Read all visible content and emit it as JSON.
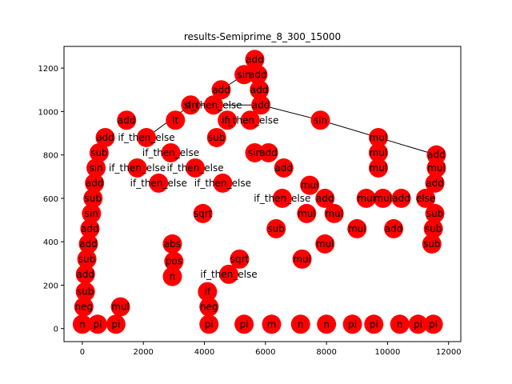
{
  "chart_data": {
    "type": "scatter",
    "title": "results-Semiprime_8_300_15000",
    "xlabel": "",
    "ylabel": "",
    "xlim": [
      -600,
      12400
    ],
    "ylim": [
      -60,
      1300
    ],
    "x_ticks": [
      0,
      2000,
      4000,
      6000,
      8000,
      10000,
      12000
    ],
    "y_ticks": [
      0,
      200,
      400,
      600,
      800,
      1000,
      1200
    ],
    "x_tick_labels": [
      "0",
      "2000",
      "4000",
      "6000",
      "8000",
      "10000",
      "12000"
    ],
    "y_tick_labels": [
      "0",
      "200",
      "400",
      "600",
      "800",
      "1000",
      "1200"
    ],
    "grid": false,
    "legend": "none",
    "node_color": "#ff0000",
    "edge_color": "#000000",
    "nodes": [
      {
        "id": "root",
        "label": "add",
        "x": 5650,
        "y": 1240
      },
      {
        "id": "r1",
        "label": "sin",
        "x": 5300,
        "y": 1170
      },
      {
        "id": "r2",
        "label": "add",
        "x": 5750,
        "y": 1170
      },
      {
        "id": "r3",
        "label": "add",
        "x": 4550,
        "y": 1100
      },
      {
        "id": "r4",
        "label": "add",
        "x": 5800,
        "y": 1100
      },
      {
        "id": "r5",
        "label": "sin",
        "x": 3550,
        "y": 1030
      },
      {
        "id": "r6",
        "label": "if_then_else",
        "x": 4300,
        "y": 1030
      },
      {
        "id": "r7",
        "label": "add",
        "x": 5850,
        "y": 1030
      },
      {
        "id": "r8",
        "label": "lt",
        "x": 3050,
        "y": 960
      },
      {
        "id": "r9",
        "label": "add",
        "x": 1450,
        "y": 960
      },
      {
        "id": "r10",
        "label": "n",
        "x": 4750,
        "y": 960
      },
      {
        "id": "r11",
        "label": "if_then_else",
        "x": 5500,
        "y": 960
      },
      {
        "id": "r12",
        "label": "sin",
        "x": 7800,
        "y": 960
      },
      {
        "id": "r13",
        "label": "if_then_else",
        "x": 2100,
        "y": 880
      },
      {
        "id": "r14",
        "label": "add",
        "x": 750,
        "y": 880
      },
      {
        "id": "r15",
        "label": "sub",
        "x": 4400,
        "y": 880
      },
      {
        "id": "r16",
        "label": "mul",
        "x": 9700,
        "y": 880
      },
      {
        "id": "r17",
        "label": "add",
        "x": 11600,
        "y": 800
      },
      {
        "id": "r18",
        "label": "mul",
        "x": 9700,
        "y": 810
      },
      {
        "id": "r19",
        "label": "sub",
        "x": 550,
        "y": 810
      },
      {
        "id": "r20",
        "label": "if_then_else",
        "x": 2900,
        "y": 810
      },
      {
        "id": "r21",
        "label": "sin",
        "x": 5650,
        "y": 810
      },
      {
        "id": "r22",
        "label": "add",
        "x": 6100,
        "y": 810
      },
      {
        "id": "r23",
        "label": "sin",
        "x": 450,
        "y": 740
      },
      {
        "id": "r24",
        "label": "mul",
        "x": 9700,
        "y": 740
      },
      {
        "id": "r25",
        "label": "mul",
        "x": 11600,
        "y": 740
      },
      {
        "id": "r26",
        "label": "add",
        "x": 6600,
        "y": 740
      },
      {
        "id": "r27",
        "label": "if_then_else",
        "x": 1800,
        "y": 740
      },
      {
        "id": "r28",
        "label": "if_then_else",
        "x": 3700,
        "y": 740
      },
      {
        "id": "r29",
        "label": "mul",
        "x": 7450,
        "y": 660
      },
      {
        "id": "r30",
        "label": "add",
        "x": 400,
        "y": 670
      },
      {
        "id": "r31",
        "label": "if_then_else",
        "x": 2500,
        "y": 670
      },
      {
        "id": "r32",
        "label": "if_then_else",
        "x": 4600,
        "y": 670
      },
      {
        "id": "r33",
        "label": "add",
        "x": 11550,
        "y": 670
      },
      {
        "id": "r34",
        "label": "sub",
        "x": 350,
        "y": 600
      },
      {
        "id": "r35",
        "label": "add",
        "x": 7950,
        "y": 600
      },
      {
        "id": "r36",
        "label": "mul",
        "x": 9300,
        "y": 600
      },
      {
        "id": "r37",
        "label": "mul",
        "x": 9850,
        "y": 600
      },
      {
        "id": "r38",
        "label": "add",
        "x": 10450,
        "y": 600
      },
      {
        "id": "r39",
        "label": "else",
        "x": 11250,
        "y": 600
      },
      {
        "id": "r40",
        "label": "if_then_else",
        "x": 6550,
        "y": 600
      },
      {
        "id": "r41",
        "label": "sin",
        "x": 300,
        "y": 530
      },
      {
        "id": "r42",
        "label": "mul",
        "x": 7350,
        "y": 530
      },
      {
        "id": "r43",
        "label": "mul",
        "x": 8250,
        "y": 530
      },
      {
        "id": "r44",
        "label": "sub",
        "x": 11550,
        "y": 530
      },
      {
        "id": "r45",
        "label": "sqrt",
        "x": 3950,
        "y": 530
      },
      {
        "id": "r46",
        "label": "add",
        "x": 250,
        "y": 460
      },
      {
        "id": "r47",
        "label": "mul",
        "x": 9000,
        "y": 460
      },
      {
        "id": "r48",
        "label": "add",
        "x": 10200,
        "y": 460
      },
      {
        "id": "r49",
        "label": "sub",
        "x": 11500,
        "y": 460
      },
      {
        "id": "r50",
        "label": "sub",
        "x": 6350,
        "y": 460
      },
      {
        "id": "r51",
        "label": "add",
        "x": 200,
        "y": 390
      },
      {
        "id": "r52",
        "label": "mul",
        "x": 7950,
        "y": 390
      },
      {
        "id": "r53",
        "label": "sub",
        "x": 11450,
        "y": 390
      },
      {
        "id": "r54",
        "label": "abs",
        "x": 2950,
        "y": 390
      },
      {
        "id": "r55",
        "label": "sub",
        "x": 150,
        "y": 320
      },
      {
        "id": "r56",
        "label": "mul",
        "x": 7200,
        "y": 320
      },
      {
        "id": "r57",
        "label": "pos",
        "x": 3000,
        "y": 310
      },
      {
        "id": "r58",
        "label": "sqrt",
        "x": 5150,
        "y": 320
      },
      {
        "id": "r59",
        "label": "add",
        "x": 100,
        "y": 250
      },
      {
        "id": "r60",
        "label": "n",
        "x": 2950,
        "y": 240
      },
      {
        "id": "r61",
        "label": "if_then_else",
        "x": 4800,
        "y": 250
      },
      {
        "id": "r62",
        "label": "sub",
        "x": 100,
        "y": 170
      },
      {
        "id": "r63",
        "label": "if",
        "x": 4100,
        "y": 170
      },
      {
        "id": "r64",
        "label": "neg",
        "x": 50,
        "y": 100
      },
      {
        "id": "r65",
        "label": "mul",
        "x": 1250,
        "y": 100
      },
      {
        "id": "r66",
        "label": "neg",
        "x": 4150,
        "y": 100
      },
      {
        "id": "r67",
        "label": "n",
        "x": 0,
        "y": 20
      },
      {
        "id": "r68",
        "label": "pi",
        "x": 500,
        "y": 20
      },
      {
        "id": "r69",
        "label": "pi",
        "x": 1100,
        "y": 20
      },
      {
        "id": "r70",
        "label": "pi",
        "x": 4150,
        "y": 20
      },
      {
        "id": "r71",
        "label": "pi",
        "x": 5300,
        "y": 20
      },
      {
        "id": "r72",
        "label": "m",
        "x": 6200,
        "y": 20
      },
      {
        "id": "r73",
        "label": "n",
        "x": 7150,
        "y": 20
      },
      {
        "id": "r74",
        "label": "n",
        "x": 8000,
        "y": 20
      },
      {
        "id": "r75",
        "label": "pi",
        "x": 8850,
        "y": 20
      },
      {
        "id": "r76",
        "label": "pi",
        "x": 9550,
        "y": 20
      },
      {
        "id": "r77",
        "label": "n",
        "x": 10400,
        "y": 20
      },
      {
        "id": "r78",
        "label": "pi",
        "x": 11000,
        "y": 20
      },
      {
        "id": "r79",
        "label": "pi",
        "x": 11500,
        "y": 20
      }
    ],
    "edges": [
      [
        "r5",
        "r7"
      ],
      [
        "r7",
        "r12"
      ],
      [
        "r12",
        "r17"
      ],
      [
        "r5",
        "r13"
      ],
      [
        "r7",
        "r11"
      ],
      [
        "r4",
        "r7"
      ],
      [
        "r2",
        "r4"
      ],
      [
        "root",
        "r2"
      ],
      [
        "r1",
        "r3"
      ],
      [
        "r3",
        "r6"
      ]
    ]
  }
}
